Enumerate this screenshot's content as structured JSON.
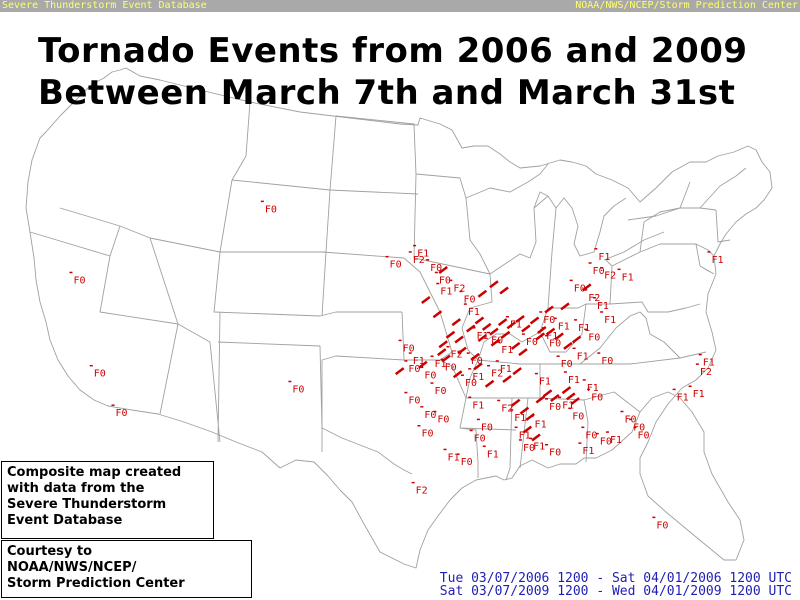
{
  "header": {
    "left": "Severe Thunderstorm Event Database",
    "right": "NOAA/NWS/NCEP/Storm Prediction Center"
  },
  "title": {
    "line1": "Tornado Events from 2006 and 2009",
    "line2": "Between March 7th and March 31st"
  },
  "info_box": {
    "lines": [
      "Composite map created",
      "with data from the",
      "Severe Thunderstorm",
      "Event Database"
    ]
  },
  "credit_box": {
    "lines": [
      "Courtesy to",
      "NOAA/NWS/NCEP/",
      "Storm Prediction Center"
    ]
  },
  "date_ranges": [
    "Tue 03/07/2006 1200 - Sat 04/01/2006 1200 UTC",
    "Sat 03/07/2009 1200 - Wed 04/01/2009 1200 UTC"
  ],
  "colors": {
    "event": "#cc0000",
    "boundary": "#a0a0a0",
    "header_bg": "#a9a9a9",
    "header_text": "#ffff66",
    "date_text": "#1e1eb4"
  },
  "map": {
    "labeled_events": [
      {
        "label": "F0",
        "lon": -120.4,
        "lat": 41.4
      },
      {
        "label": "F0",
        "lon": -119.0,
        "lat": 35.5
      },
      {
        "label": "F0",
        "lon": -117.5,
        "lat": 33.0
      },
      {
        "label": "F0",
        "lon": -107.2,
        "lat": 45.9
      },
      {
        "label": "F0",
        "lon": -105.3,
        "lat": 34.5
      },
      {
        "label": "F0",
        "lon": -98.6,
        "lat": 42.4
      },
      {
        "label": "F1",
        "lon": -96.7,
        "lat": 43.1
      },
      {
        "label": "F2",
        "lon": -97.0,
        "lat": 42.7
      },
      {
        "label": "F0",
        "lon": -95.8,
        "lat": 42.2
      },
      {
        "label": "F0",
        "lon": -95.2,
        "lat": 41.4
      },
      {
        "label": "F1",
        "lon": -95.1,
        "lat": 40.7
      },
      {
        "label": "F2",
        "lon": -94.2,
        "lat": 40.9
      },
      {
        "label": "F0",
        "lon": -93.5,
        "lat": 40.2
      },
      {
        "label": "F1",
        "lon": -93.2,
        "lat": 39.4
      },
      {
        "label": "F0",
        "lon": -97.7,
        "lat": 37.1
      },
      {
        "label": "F1",
        "lon": -97.0,
        "lat": 36.3
      },
      {
        "label": "F0",
        "lon": -97.3,
        "lat": 35.8
      },
      {
        "label": "F0",
        "lon": -96.2,
        "lat": 35.4
      },
      {
        "label": "F1",
        "lon": -95.5,
        "lat": 36.1
      },
      {
        "label": "F0",
        "lon": -94.8,
        "lat": 35.9
      },
      {
        "label": "F2",
        "lon": -94.4,
        "lat": 36.7
      },
      {
        "label": "F0",
        "lon": -93.0,
        "lat": 36.3
      },
      {
        "label": "F1",
        "lon": -92.9,
        "lat": 35.3
      },
      {
        "label": "F2",
        "lon": -91.6,
        "lat": 35.5
      },
      {
        "label": "F1",
        "lon": -91.0,
        "lat": 35.8
      },
      {
        "label": "F0",
        "lon": -95.5,
        "lat": 34.4
      },
      {
        "label": "F0",
        "lon": -97.3,
        "lat": 33.8
      },
      {
        "label": "F0",
        "lon": -96.2,
        "lat": 32.9
      },
      {
        "label": "F0",
        "lon": -95.3,
        "lat": 32.6
      },
      {
        "label": "F1",
        "lon": -92.9,
        "lat": 33.5
      },
      {
        "label": "F2",
        "lon": -90.9,
        "lat": 33.3
      },
      {
        "label": "F0",
        "lon": -92.3,
        "lat": 32.1
      },
      {
        "label": "F0",
        "lon": -92.8,
        "lat": 31.4
      },
      {
        "label": "F1",
        "lon": -90.0,
        "lat": 32.7
      },
      {
        "label": "F1",
        "lon": -89.7,
        "lat": 31.6
      },
      {
        "label": "F1",
        "lon": -88.6,
        "lat": 32.3
      },
      {
        "label": "F0",
        "lon": -87.6,
        "lat": 33.4
      },
      {
        "label": "F1",
        "lon": -86.7,
        "lat": 33.5
      },
      {
        "label": "F0",
        "lon": -86.0,
        "lat": 32.8
      },
      {
        "label": "F0",
        "lon": -85.1,
        "lat": 31.6
      },
      {
        "label": "F0",
        "lon": -84.1,
        "lat": 31.2
      },
      {
        "label": "F1",
        "lon": -83.4,
        "lat": 31.3
      },
      {
        "label": "F0",
        "lon": -82.4,
        "lat": 32.6
      },
      {
        "label": "F0",
        "lon": -81.8,
        "lat": 32.1
      },
      {
        "label": "F0",
        "lon": -81.5,
        "lat": 31.6
      },
      {
        "label": "F1",
        "lon": -85.0,
        "lat": 34.6
      },
      {
        "label": "F0",
        "lon": -84.7,
        "lat": 34.0
      },
      {
        "label": "F1",
        "lon": -86.3,
        "lat": 35.1
      },
      {
        "label": "F0",
        "lon": -86.8,
        "lat": 36.1
      },
      {
        "label": "F1",
        "lon": -85.7,
        "lat": 36.6
      },
      {
        "label": "F0",
        "lon": -84.0,
        "lat": 36.3
      },
      {
        "label": "F0",
        "lon": -87.6,
        "lat": 37.4
      },
      {
        "label": "F1",
        "lon": -87.8,
        "lat": 37.9
      },
      {
        "label": "F1",
        "lon": -87.0,
        "lat": 38.5
      },
      {
        "label": "F0",
        "lon": -88.0,
        "lat": 38.9
      },
      {
        "label": "F1",
        "lon": -85.6,
        "lat": 38.4
      },
      {
        "label": "F0",
        "lon": -84.9,
        "lat": 37.8
      },
      {
        "label": "F1",
        "lon": -83.8,
        "lat": 38.9
      },
      {
        "label": "F2",
        "lon": -84.9,
        "lat": 40.3
      },
      {
        "label": "F0",
        "lon": -85.9,
        "lat": 40.9
      },
      {
        "label": "F1",
        "lon": -84.3,
        "lat": 39.8
      },
      {
        "label": "F1",
        "lon": -84.2,
        "lat": 42.9
      },
      {
        "label": "F0",
        "lon": -84.6,
        "lat": 42.0
      },
      {
        "label": "F2",
        "lon": -83.8,
        "lat": 41.7
      },
      {
        "label": "F1",
        "lon": -82.6,
        "lat": 41.6
      },
      {
        "label": "F1",
        "lon": -76.4,
        "lat": 42.7
      },
      {
        "label": "F1",
        "lon": -77.0,
        "lat": 36.2
      },
      {
        "label": "F2",
        "lon": -77.2,
        "lat": 35.6
      },
      {
        "label": "F1",
        "lon": -77.7,
        "lat": 34.2
      },
      {
        "label": "F1",
        "lon": -78.8,
        "lat": 34.0
      },
      {
        "label": "F0",
        "lon": -80.2,
        "lat": 25.9
      },
      {
        "label": "F2",
        "lon": -96.8,
        "lat": 28.1
      },
      {
        "label": "F1",
        "lon": -92.6,
        "lat": 37.9
      },
      {
        "label": "F0",
        "lon": -91.6,
        "lat": 37.6
      },
      {
        "label": "F1",
        "lon": -90.9,
        "lat": 37.0
      },
      {
        "label": "F0",
        "lon": -93.4,
        "lat": 34.9
      },
      {
        "label": "F1",
        "lon": -88.3,
        "lat": 35.0
      },
      {
        "label": "F0",
        "lon": -96.4,
        "lat": 31.7
      },
      {
        "label": "F1",
        "lon": -94.6,
        "lat": 30.2
      },
      {
        "label": "F0",
        "lon": -93.7,
        "lat": 29.9
      },
      {
        "label": "F1",
        "lon": -91.9,
        "lat": 30.4
      },
      {
        "label": "F0",
        "lon": -89.4,
        "lat": 30.8
      },
      {
        "label": "F1",
        "lon": -88.7,
        "lat": 30.9
      },
      {
        "label": "F0",
        "lon": -87.6,
        "lat": 30.5
      },
      {
        "label": "F1",
        "lon": -85.3,
        "lat": 30.6
      },
      {
        "label": "F0",
        "lon": -89.2,
        "lat": 37.5
      },
      {
        "label": "F1",
        "lon": -90.3,
        "lat": 38.6
      }
    ],
    "path_events": [
      {
        "lon": -90.8,
        "lat": 38.7
      },
      {
        "lon": -90.2,
        "lat": 38.5
      },
      {
        "lon": -89.6,
        "lat": 38.9
      },
      {
        "lon": -89.2,
        "lat": 38.3
      },
      {
        "lon": -88.6,
        "lat": 38.8
      },
      {
        "lon": -88.1,
        "lat": 38.2
      },
      {
        "lon": -91.4,
        "lat": 38.1
      },
      {
        "lon": -91.9,
        "lat": 38.4
      },
      {
        "lon": -92.4,
        "lat": 38.8
      },
      {
        "lon": -93.0,
        "lat": 38.3
      },
      {
        "lon": -92.2,
        "lat": 37.7
      },
      {
        "lon": -91.3,
        "lat": 37.4
      },
      {
        "lon": -90.6,
        "lat": 37.9
      },
      {
        "lon": -89.9,
        "lat": 37.2
      },
      {
        "lon": -89.4,
        "lat": 36.8
      },
      {
        "lon": -93.8,
        "lat": 37.6
      },
      {
        "lon": -94.4,
        "lat": 37.9
      },
      {
        "lon": -94.0,
        "lat": 38.7
      },
      {
        "lon": -95.3,
        "lat": 39.2
      },
      {
        "lon": -94.9,
        "lat": 37.3
      },
      {
        "lon": -93.6,
        "lat": 36.9
      },
      {
        "lon": -92.7,
        "lat": 36.5
      },
      {
        "lon": -88.2,
        "lat": 37.8
      },
      {
        "lon": -87.5,
        "lat": 38.1
      },
      {
        "lon": -86.9,
        "lat": 37.8
      },
      {
        "lon": -86.3,
        "lat": 37.2
      },
      {
        "lon": -85.7,
        "lat": 37.6
      },
      {
        "lon": -89.9,
        "lat": 33.6
      },
      {
        "lon": -89.3,
        "lat": 33.1
      },
      {
        "lon": -88.9,
        "lat": 32.7
      },
      {
        "lon": -88.2,
        "lat": 33.8
      },
      {
        "lon": -87.7,
        "lat": 34.2
      },
      {
        "lon": -87.2,
        "lat": 33.9
      },
      {
        "lon": -86.4,
        "lat": 34.4
      },
      {
        "lon": -86.1,
        "lat": 34.0
      },
      {
        "lon": -85.8,
        "lat": 33.7
      },
      {
        "lon": -89.1,
        "lat": 31.9
      },
      {
        "lon": -88.5,
        "lat": 31.4
      },
      {
        "lon": -90.5,
        "lat": 35.1
      },
      {
        "lon": -89.8,
        "lat": 35.6
      },
      {
        "lon": -91.7,
        "lat": 34.8
      },
      {
        "lon": -92.5,
        "lat": 35.9
      },
      {
        "lon": -93.9,
        "lat": 35.4
      },
      {
        "lon": -94.7,
        "lat": 36.4
      },
      {
        "lon": -96.3,
        "lat": 36.0
      },
      {
        "lon": -97.9,
        "lat": 35.6
      },
      {
        "lon": -92.2,
        "lat": 40.5
      },
      {
        "lon": -91.4,
        "lat": 41.1
      },
      {
        "lon": -90.7,
        "lat": 40.7
      },
      {
        "lon": -94.9,
        "lat": 42.0
      },
      {
        "lon": -96.1,
        "lat": 40.1
      },
      {
        "lon": -95.0,
        "lat": 36.8
      },
      {
        "lon": -85.0,
        "lat": 40.9
      },
      {
        "lon": -86.5,
        "lat": 39.7
      },
      {
        "lon": -87.6,
        "lat": 39.5
      }
    ]
  }
}
